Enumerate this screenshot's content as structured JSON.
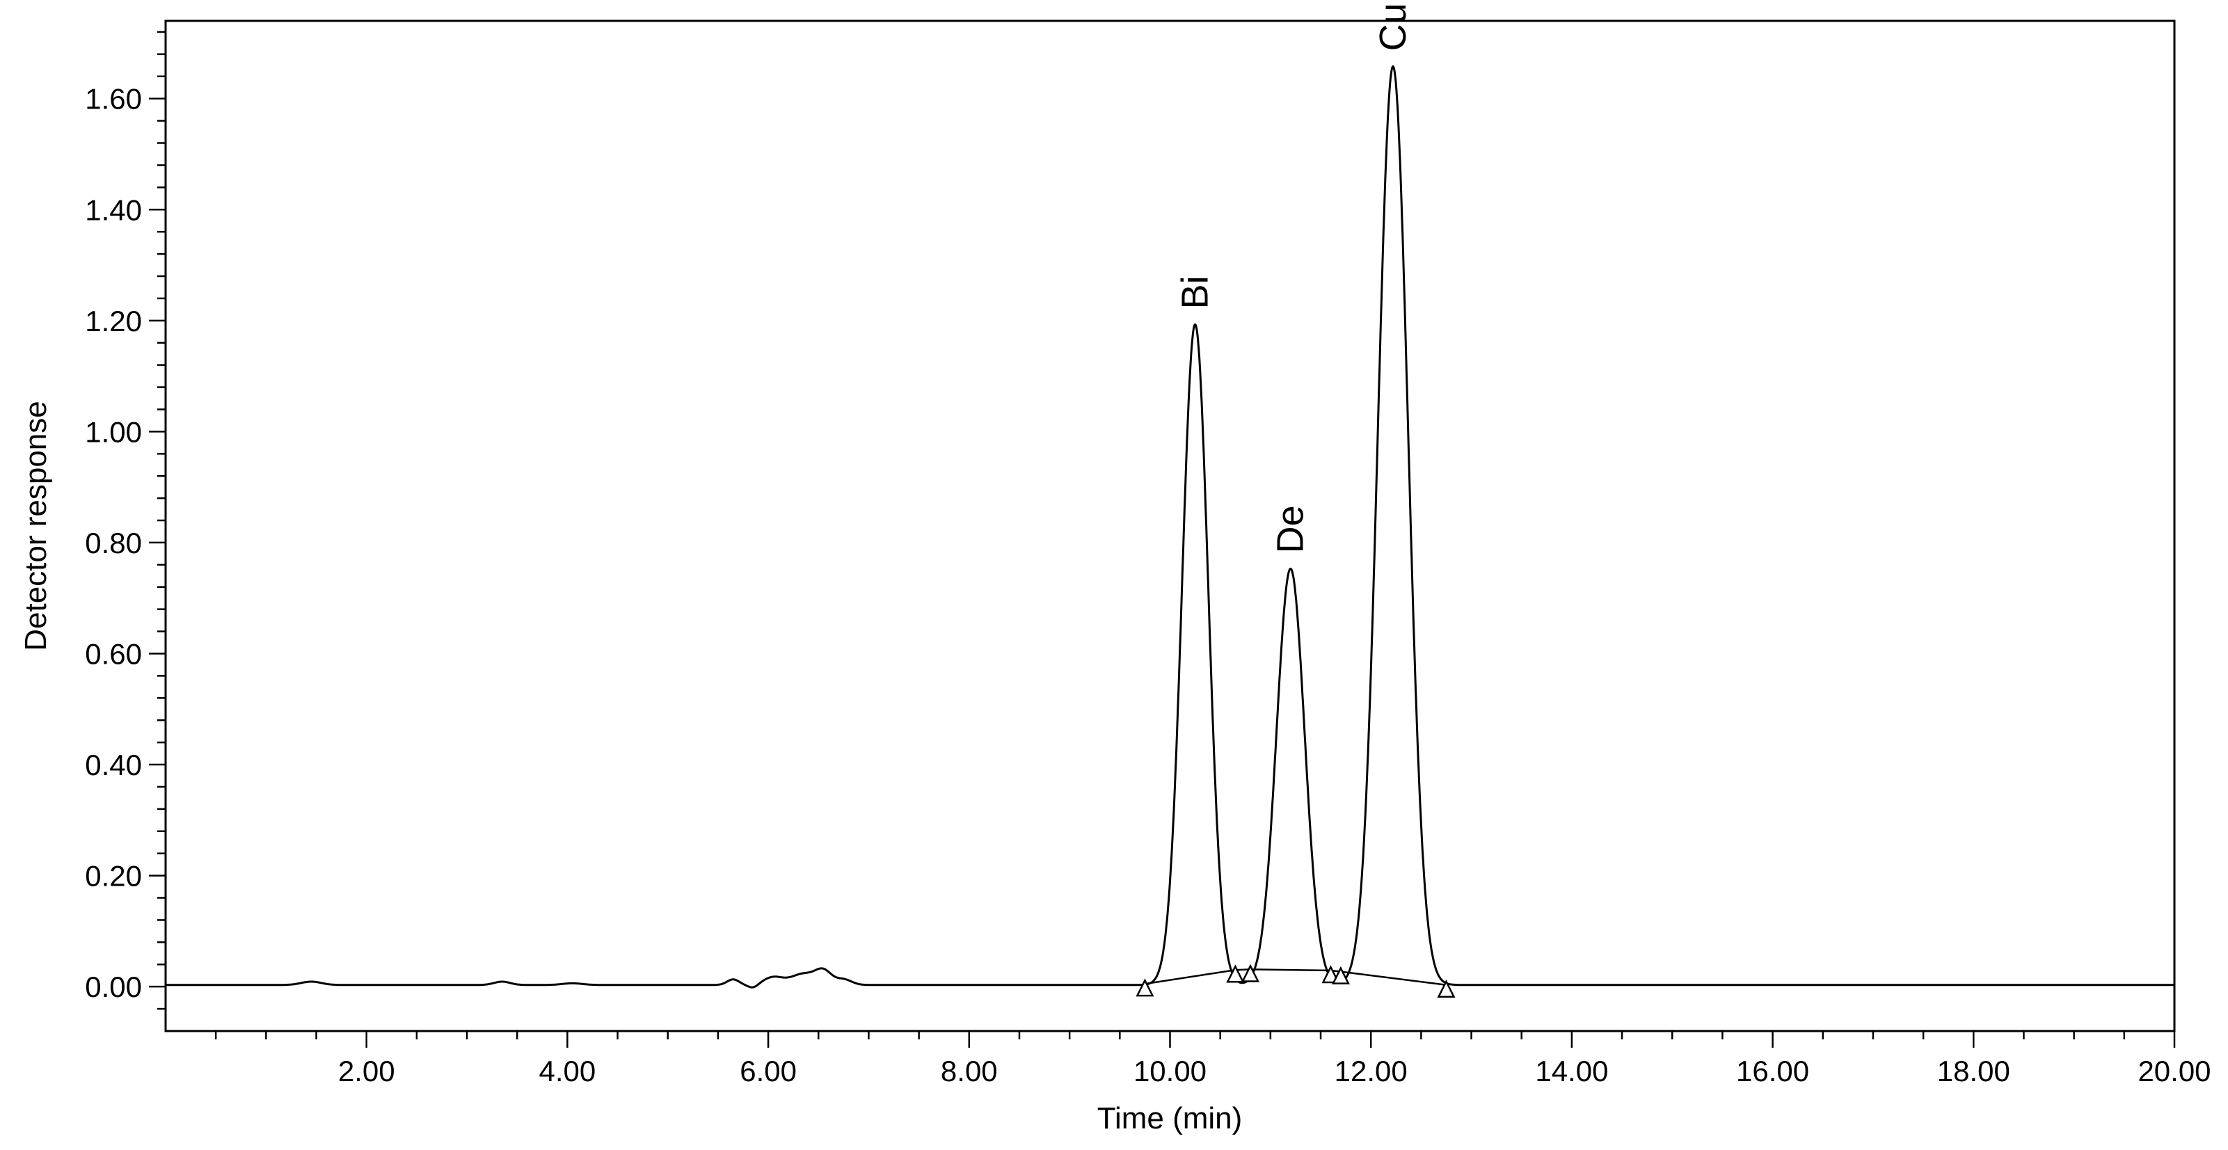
{
  "chart_data": {
    "type": "line",
    "title": "",
    "xlabel": "Time (min)",
    "ylabel": "Detector response",
    "xlim": [
      0,
      20
    ],
    "ylim": [
      -0.08,
      1.74
    ],
    "grid": false,
    "legend": "none",
    "x_ticks": [
      2,
      4,
      6,
      8,
      10,
      12,
      14,
      16,
      18,
      20
    ],
    "x_tick_labels": [
      "2.00",
      "4.00",
      "6.00",
      "8.00",
      "10.00",
      "12.00",
      "14.00",
      "16.00",
      "18.00",
      "20.00"
    ],
    "x_minor_step": 0.5,
    "y_ticks": [
      0,
      0.2,
      0.4,
      0.6,
      0.8,
      1.0,
      1.2,
      1.4,
      1.6
    ],
    "y_tick_labels": [
      "0.00",
      "0.20",
      "0.40",
      "0.60",
      "0.80",
      "1.00",
      "1.20",
      "1.40",
      "1.60"
    ],
    "y_minor_step": 0.04,
    "trace_color": "#000000",
    "baseline_level": 0.003,
    "noise": [
      {
        "x": 1.45,
        "h": 0.006,
        "w": 0.1
      },
      {
        "x": 3.35,
        "h": 0.006,
        "w": 0.08
      },
      {
        "x": 4.05,
        "h": 0.003,
        "w": 0.1
      },
      {
        "x": 5.65,
        "h": 0.01,
        "w": 0.06
      },
      {
        "x": 6.05,
        "h": 0.014,
        "w": 0.1
      },
      {
        "x": 6.35,
        "h": 0.02,
        "w": 0.12
      },
      {
        "x": 6.55,
        "h": 0.024,
        "w": 0.08
      },
      {
        "x": 6.75,
        "h": 0.01,
        "w": 0.08
      }
    ],
    "peaks": [
      {
        "name": "Bi",
        "rt": 10.25,
        "height": 1.19,
        "sigma": 0.13
      },
      {
        "name": "De",
        "rt": 11.2,
        "height": 0.75,
        "sigma": 0.14
      },
      {
        "name": "Cu",
        "rt": 12.22,
        "height": 1.655,
        "sigma": 0.15
      }
    ],
    "integration_baseline": [
      {
        "x": 9.75,
        "y": 0.005
      },
      {
        "x": 10.65,
        "y": 0.03
      },
      {
        "x": 10.8,
        "y": 0.031
      },
      {
        "x": 11.6,
        "y": 0.029
      },
      {
        "x": 11.7,
        "y": 0.027
      },
      {
        "x": 12.75,
        "y": 0.003
      }
    ]
  }
}
